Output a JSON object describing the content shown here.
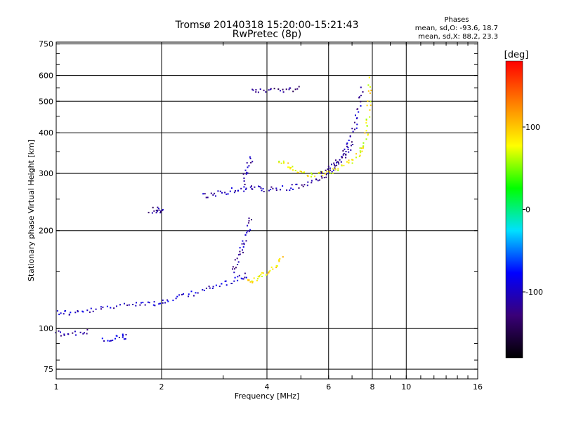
{
  "chart_data": {
    "type": "scatter",
    "title": "Tromsø 20140318 15:20:00-15:21:43",
    "subtitle": "RwPretec (8p)",
    "stats": {
      "heading": "Phases",
      "line1": "mean, sd,O: -93.6, 18.7",
      "line2": "mean, sd,X:  88.2, 23.3"
    },
    "xlabel": "Frequency [MHz]",
    "ylabel": "Stationary phase Virtual Height [km]",
    "x_scale": "log",
    "y_scale": "log",
    "xlim": [
      1,
      16
    ],
    "ylim": [
      70,
      760
    ],
    "x_ticks": [
      {
        "v": 1,
        "label": "1"
      },
      {
        "v": 2,
        "label": "2"
      },
      {
        "v": 4,
        "label": "4"
      },
      {
        "v": 6,
        "label": "6"
      },
      {
        "v": 8,
        "label": "8"
      },
      {
        "v": 10,
        "label": "10"
      },
      {
        "v": 16,
        "label": "16"
      }
    ],
    "y_ticks": [
      {
        "v": 75,
        "label": "75"
      },
      {
        "v": 100,
        "label": "100"
      },
      {
        "v": 200,
        "label": "200"
      },
      {
        "v": 300,
        "label": "300"
      },
      {
        "v": 400,
        "label": "400"
      },
      {
        "v": 500,
        "label": "500"
      },
      {
        "v": 600,
        "label": "600"
      },
      {
        "v": 750,
        "label": "750"
      }
    ],
    "grid": true,
    "colorbar": {
      "label": "[deg]",
      "range": [
        -180,
        180
      ],
      "ticks": [
        {
          "v": 100,
          "label": "100"
        },
        {
          "v": 0,
          "label": "0"
        },
        {
          "v": -100,
          "label": "-100"
        }
      ],
      "colors": [
        "#000000",
        "#3a0078",
        "#0000ff",
        "#00e0ff",
        "#00ff00",
        "#ffff00",
        "#ff8000",
        "#ff0000"
      ]
    },
    "traces": [
      {
        "name": "",
        "phase": -100,
        "points": [
          [
            1.0,
            113
          ],
          [
            1.1,
            112
          ],
          [
            1.25,
            114
          ],
          [
            1.45,
            117
          ],
          [
            1.7,
            121
          ],
          [
            1.9,
            120
          ],
          [
            2.1,
            122
          ],
          [
            2.4,
            128
          ],
          [
            2.7,
            133
          ],
          [
            3.0,
            138
          ],
          [
            3.3,
            143
          ],
          [
            3.5,
            147
          ]
        ]
      },
      {
        "name": "",
        "phase": -110,
        "points": [
          [
            1.0,
            97
          ],
          [
            1.1,
            97
          ],
          [
            1.25,
            98
          ]
        ]
      },
      {
        "name": "",
        "phase": -100,
        "points": [
          [
            1.35,
            92
          ],
          [
            1.5,
            94
          ],
          [
            1.6,
            95
          ]
        ]
      },
      {
        "name": "",
        "phase": -110,
        "points": [
          [
            3.2,
            150
          ],
          [
            3.3,
            165
          ],
          [
            3.4,
            180
          ],
          [
            3.5,
            200
          ],
          [
            3.6,
            225
          ]
        ]
      },
      {
        "name": "",
        "phase": 90,
        "points": [
          [
            3.5,
            140
          ],
          [
            3.7,
            143
          ],
          [
            3.9,
            147
          ],
          [
            4.2,
            155
          ],
          [
            4.4,
            170
          ]
        ]
      },
      {
        "name": "",
        "phase": -110,
        "points": [
          [
            2.6,
            256
          ],
          [
            2.9,
            262
          ],
          [
            3.2,
            268
          ],
          [
            3.5,
            271
          ],
          [
            3.8,
            270
          ],
          [
            4.2,
            269
          ],
          [
            4.7,
            272
          ],
          [
            5.2,
            279
          ],
          [
            5.7,
            292
          ],
          [
            6.1,
            308
          ],
          [
            6.5,
            335
          ],
          [
            6.8,
            370
          ],
          [
            7.1,
            420
          ],
          [
            7.3,
            480
          ],
          [
            7.5,
            560
          ]
        ]
      },
      {
        "name": "",
        "phase": -120,
        "points": [
          [
            1.85,
            232
          ],
          [
            1.95,
            233
          ],
          [
            2.0,
            230
          ]
        ]
      },
      {
        "name": "",
        "phase": -110,
        "points": [
          [
            3.4,
            280
          ],
          [
            3.5,
            310
          ],
          [
            3.6,
            340
          ]
        ]
      },
      {
        "name": "",
        "phase": -120,
        "points": [
          [
            3.6,
            547
          ],
          [
            4.0,
            543
          ],
          [
            4.5,
            545
          ],
          [
            5.0,
            548
          ]
        ]
      },
      {
        "name": "",
        "phase": 80,
        "points": [
          [
            4.3,
            332
          ],
          [
            4.6,
            318
          ],
          [
            4.9,
            305
          ],
          [
            5.3,
            300
          ],
          [
            5.8,
            300
          ],
          [
            6.3,
            308
          ],
          [
            6.8,
            325
          ],
          [
            7.3,
            345
          ],
          [
            7.6,
            370
          ],
          [
            7.7,
            420
          ],
          [
            7.8,
            500
          ],
          [
            7.8,
            600
          ]
        ]
      },
      {
        "name": "",
        "phase": -120,
        "points": [
          [
            5.7,
            302
          ],
          [
            6.3,
            322
          ],
          [
            6.7,
            345
          ],
          [
            7.0,
            378
          ]
        ]
      }
    ]
  }
}
